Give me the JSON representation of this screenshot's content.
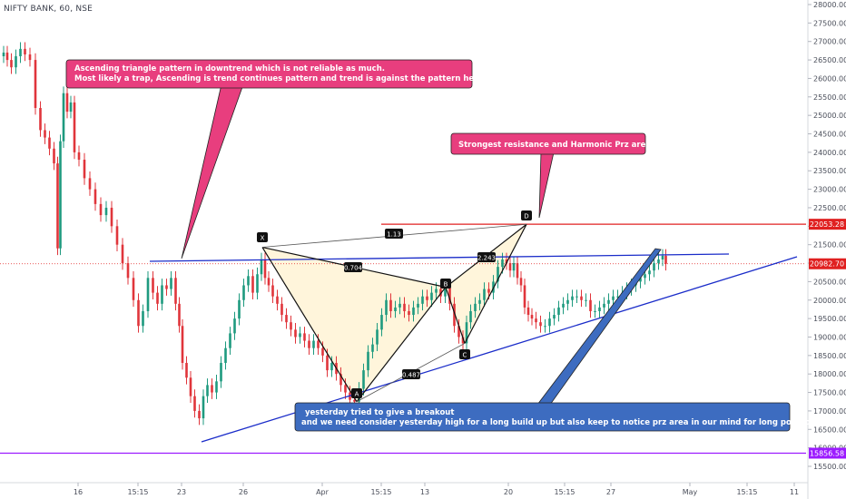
{
  "header": {
    "symbol_title": "NIFTY BANK, 60, NSE"
  },
  "chart_data": {
    "type": "candlestick",
    "symbol": "NIFTY BANK",
    "interval": "60",
    "exchange": "NSE",
    "ylim": [
      15000,
      28300
    ],
    "y_ticks": [
      15500,
      16000,
      16500,
      17000,
      17500,
      18000,
      18500,
      19000,
      19500,
      20000,
      20500,
      21000,
      21500,
      22000,
      22500,
      23000,
      23500,
      24000,
      24500,
      25000,
      25500,
      26000,
      26500,
      27000,
      27500,
      28000
    ],
    "x_ticks": [
      "16",
      "15:15",
      "23",
      "26",
      "Apr",
      "15:15",
      "13",
      "20",
      "15:15",
      "27",
      "May",
      "15:15",
      "11"
    ],
    "last_price": 20982.7,
    "price_labels": [
      {
        "value": 22053.28,
        "text": "22053.28",
        "color": "#e02020"
      },
      {
        "value": 20982.7,
        "text": "20982.70",
        "color": "#e02020"
      },
      {
        "value": 15856.58,
        "text": "15856.58",
        "color": "#9c1bff"
      }
    ],
    "horizontal_lines": [
      {
        "value": 22053.28,
        "color": "#e02020"
      },
      {
        "value": 15856.58,
        "color": "#9c1bff"
      }
    ],
    "harmonic_points": [
      {
        "label": "X",
        "price": 21430
      },
      {
        "label": "A",
        "price": 17250
      },
      {
        "label": "B",
        "price": 20350
      },
      {
        "label": "C",
        "price": 18830
      },
      {
        "label": "D",
        "price": 22050
      }
    ],
    "ratios": [
      "1.13",
      "0.704",
      "2.243",
      "0.487"
    ],
    "series_path": [
      [
        2,
        26600
      ],
      [
        6,
        26700
      ],
      [
        10,
        26500
      ],
      [
        15,
        26300
      ],
      [
        20,
        26600
      ],
      [
        25,
        26800
      ],
      [
        30,
        26650
      ],
      [
        36,
        26500
      ],
      [
        42,
        25200
      ],
      [
        47,
        24600
      ],
      [
        52,
        24400
      ],
      [
        57,
        24100
      ],
      [
        62,
        23700
      ],
      [
        65,
        21400
      ],
      [
        68,
        24300
      ],
      [
        72,
        25600
      ],
      [
        76,
        25100
      ],
      [
        80,
        25350
      ],
      [
        84,
        24000
      ],
      [
        90,
        23800
      ],
      [
        96,
        23300
      ],
      [
        102,
        23000
      ],
      [
        108,
        22600
      ],
      [
        114,
        22300
      ],
      [
        120,
        22500
      ],
      [
        126,
        22000
      ],
      [
        132,
        21500
      ],
      [
        138,
        21000
      ],
      [
        144,
        20600
      ],
      [
        150,
        20000
      ],
      [
        155,
        19300
      ],
      [
        160,
        19700
      ],
      [
        166,
        20600
      ],
      [
        171,
        20200
      ],
      [
        176,
        19900
      ],
      [
        181,
        20400
      ],
      [
        186,
        20300
      ],
      [
        191,
        20600
      ],
      [
        196,
        19900
      ],
      [
        199,
        19300
      ],
      [
        203,
        18300
      ],
      [
        208,
        17900
      ],
      [
        212,
        17400
      ],
      [
        217,
        17000
      ],
      [
        222,
        16800
      ],
      [
        226,
        17400
      ],
      [
        231,
        17700
      ],
      [
        236,
        17500
      ],
      [
        241,
        17800
      ],
      [
        246,
        18300
      ],
      [
        251,
        18700
      ],
      [
        256,
        19100
      ],
      [
        261,
        19500
      ],
      [
        266,
        20000
      ],
      [
        271,
        20400
      ],
      [
        276,
        20650
      ],
      [
        281,
        20200
      ],
      [
        286,
        20700
      ],
      [
        290,
        21100
      ],
      [
        294,
        20600
      ],
      [
        298,
        20400
      ],
      [
        303,
        20100
      ],
      [
        308,
        19900
      ],
      [
        313,
        19600
      ],
      [
        318,
        19400
      ],
      [
        323,
        19200
      ],
      [
        328,
        19000
      ],
      [
        333,
        19100
      ],
      [
        338,
        18900
      ],
      [
        343,
        18700
      ],
      [
        348,
        18900
      ],
      [
        353,
        18700
      ],
      [
        358,
        18500
      ],
      [
        363,
        18100
      ],
      [
        368,
        18300
      ],
      [
        373,
        18000
      ],
      [
        378,
        17700
      ],
      [
        383,
        17500
      ],
      [
        388,
        17300
      ],
      [
        393,
        17250
      ],
      [
        398,
        17600
      ],
      [
        403,
        18100
      ],
      [
        408,
        18600
      ],
      [
        413,
        18800
      ],
      [
        418,
        19200
      ],
      [
        423,
        19600
      ],
      [
        428,
        20000
      ],
      [
        433,
        19700
      ],
      [
        438,
        19800
      ],
      [
        443,
        19900
      ],
      [
        448,
        19700
      ],
      [
        453,
        19600
      ],
      [
        458,
        19800
      ],
      [
        463,
        19900
      ],
      [
        468,
        20100
      ],
      [
        473,
        20000
      ],
      [
        478,
        20200
      ],
      [
        483,
        20300
      ],
      [
        488,
        20100
      ],
      [
        493,
        20350
      ],
      [
        498,
        19900
      ],
      [
        503,
        19300
      ],
      [
        508,
        19000
      ],
      [
        512,
        18830
      ],
      [
        516,
        19400
      ],
      [
        521,
        19700
      ],
      [
        526,
        19900
      ],
      [
        531,
        20000
      ],
      [
        536,
        20300
      ],
      [
        541,
        20200
      ],
      [
        546,
        20500
      ],
      [
        551,
        20900
      ],
      [
        556,
        21100
      ],
      [
        560,
        21000
      ],
      [
        564,
        20800
      ],
      [
        568,
        21000
      ],
      [
        572,
        20600
      ],
      [
        576,
        20400
      ],
      [
        580,
        19800
      ],
      [
        584,
        19600
      ],
      [
        588,
        19500
      ],
      [
        593,
        19400
      ],
      [
        598,
        19300
      ],
      [
        603,
        19300
      ],
      [
        608,
        19500
      ],
      [
        613,
        19600
      ],
      [
        618,
        19800
      ],
      [
        623,
        19900
      ],
      [
        628,
        20000
      ],
      [
        633,
        20100
      ],
      [
        638,
        20100
      ],
      [
        643,
        20000
      ],
      [
        648,
        20000
      ],
      [
        653,
        19700
      ],
      [
        658,
        19700
      ],
      [
        663,
        19800
      ],
      [
        668,
        19900
      ],
      [
        673,
        20000
      ],
      [
        678,
        20100
      ],
      [
        683,
        20100
      ],
      [
        688,
        20200
      ],
      [
        693,
        20300
      ],
      [
        698,
        20400
      ],
      [
        703,
        20500
      ],
      [
        708,
        20600
      ],
      [
        713,
        20700
      ],
      [
        718,
        20800
      ],
      [
        723,
        21000
      ],
      [
        728,
        21100
      ],
      [
        732,
        21200
      ],
      [
        735,
        20982
      ]
    ],
    "annotations": [
      {
        "name": "triangle-note",
        "text": [
          "Ascending triangle pattern in downtrend which is not reliable as much.",
          "Most likely a trap, Ascending is trend continues pattern and trend is against the pattern here..."
        ]
      },
      {
        "name": "resistance-note",
        "text": [
          "Strongest resistance and Harmonic Prz area"
        ]
      },
      {
        "name": "breakout-note",
        "text": [
          "yesterday tried to give a breakout",
          "and we need consider yesterday high for a long build up but also keep to notice prz area in our mind for long position"
        ]
      }
    ]
  }
}
